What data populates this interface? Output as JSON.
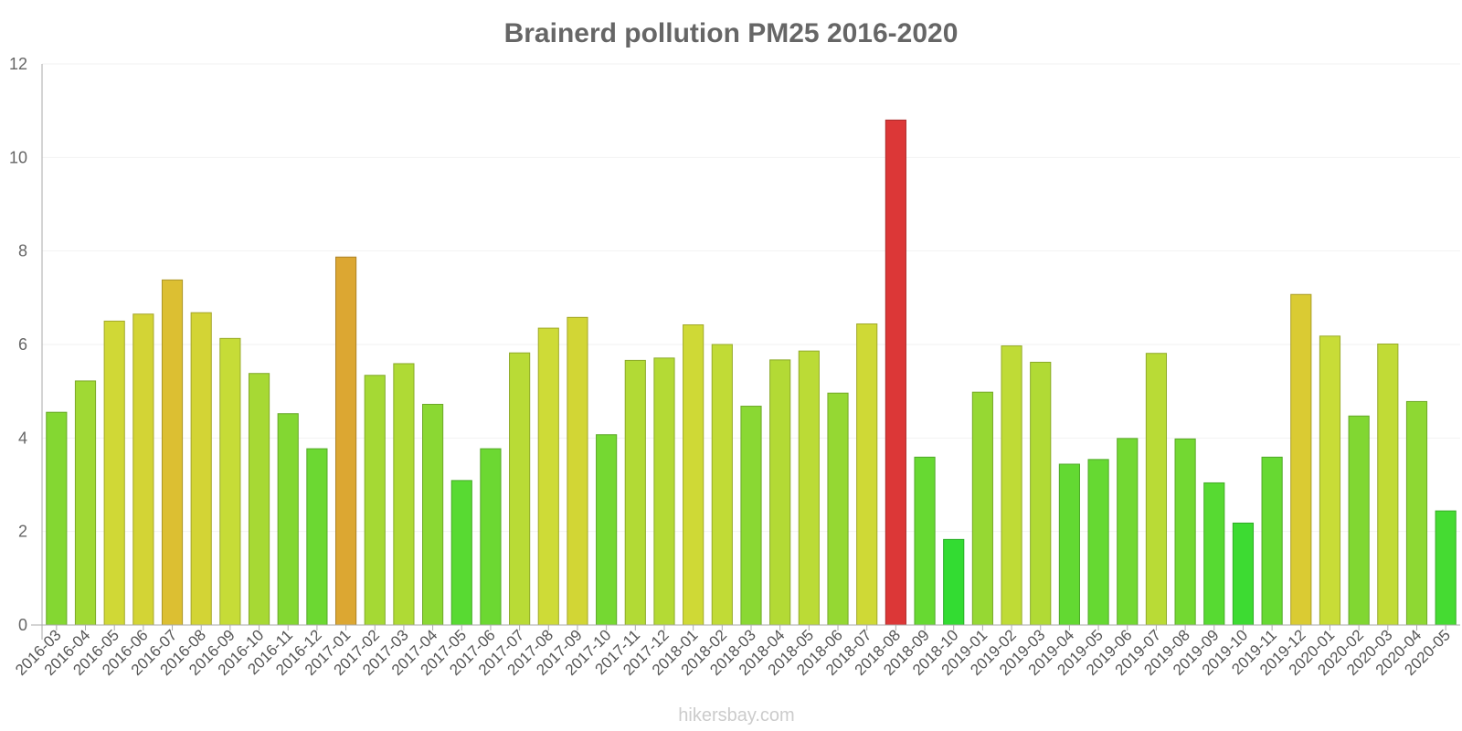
{
  "chart_data": {
    "type": "bar",
    "title": "Brainerd pollution PM25 2016-2020",
    "xlabel": "",
    "ylabel": "",
    "ylim": [
      0,
      12
    ],
    "yticks": [
      "0",
      "2",
      "4",
      "6",
      "8",
      "10",
      "12"
    ],
    "categories": [
      "2016-03",
      "2016-04",
      "2016-05",
      "2016-06",
      "2016-07",
      "2016-08",
      "2016-09",
      "2016-10",
      "2016-11",
      "2016-12",
      "2017-01",
      "2017-02",
      "2017-03",
      "2017-04",
      "2017-05",
      "2017-06",
      "2017-07",
      "2017-08",
      "2017-09",
      "2017-10",
      "2017-11",
      "2017-12",
      "2018-01",
      "2018-02",
      "2018-03",
      "2018-04",
      "2018-05",
      "2018-06",
      "2018-07",
      "2018-08",
      "2018-09",
      "2018-10",
      "2019-01",
      "2019-02",
      "2019-03",
      "2019-04",
      "2019-05",
      "2019-06",
      "2019-07",
      "2019-08",
      "2019-09",
      "2019-10",
      "2019-11",
      "2019-12",
      "2020-01",
      "2020-02",
      "2020-03",
      "2020-04",
      "2020-05"
    ],
    "values": [
      4.55,
      5.22,
      6.5,
      6.65,
      7.38,
      6.68,
      6.13,
      5.38,
      4.52,
      3.77,
      7.87,
      5.34,
      5.59,
      4.72,
      3.09,
      3.77,
      5.82,
      6.35,
      6.58,
      4.07,
      5.66,
      5.71,
      6.42,
      6.0,
      4.68,
      5.67,
      5.86,
      4.96,
      6.44,
      10.8,
      3.59,
      1.83,
      4.98,
      5.97,
      5.62,
      3.44,
      3.54,
      3.99,
      5.81,
      3.98,
      3.04,
      2.18,
      3.59,
      7.07,
      6.18,
      4.47,
      6.01,
      4.78,
      2.44
    ],
    "grid": true,
    "legend": "none"
  },
  "watermark": "hikersbay.com"
}
